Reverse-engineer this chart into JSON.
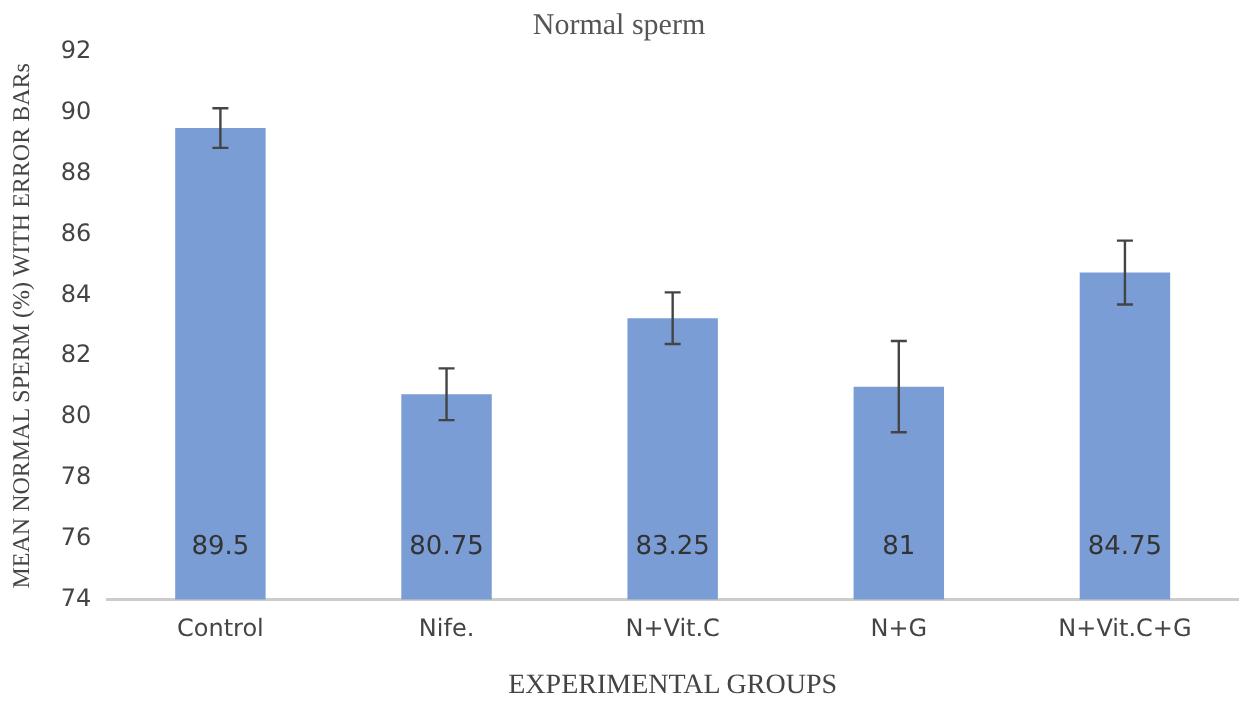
{
  "chart_data": {
    "type": "bar",
    "title": "Normal sperm",
    "xlabel": "EXPERIMENTAL GROUPS",
    "ylabel": "MEAN NORMAL SPERM (%) WITH ERROR BARs",
    "categories": [
      "Control",
      "Nife.",
      "N+Vit.C",
      "N+G",
      "N+Vit.C+G"
    ],
    "values": [
      89.5,
      80.75,
      83.25,
      81,
      84.75
    ],
    "errors": [
      0.65,
      0.85,
      0.85,
      1.5,
      1.05
    ],
    "color": "#7b9dd6",
    "data_labels": true,
    "grid": false,
    "legend": false,
    "ylim": [
      74,
      92
    ],
    "yticks": [
      74,
      76,
      78,
      80,
      82,
      84,
      86,
      88,
      90,
      92
    ]
  }
}
